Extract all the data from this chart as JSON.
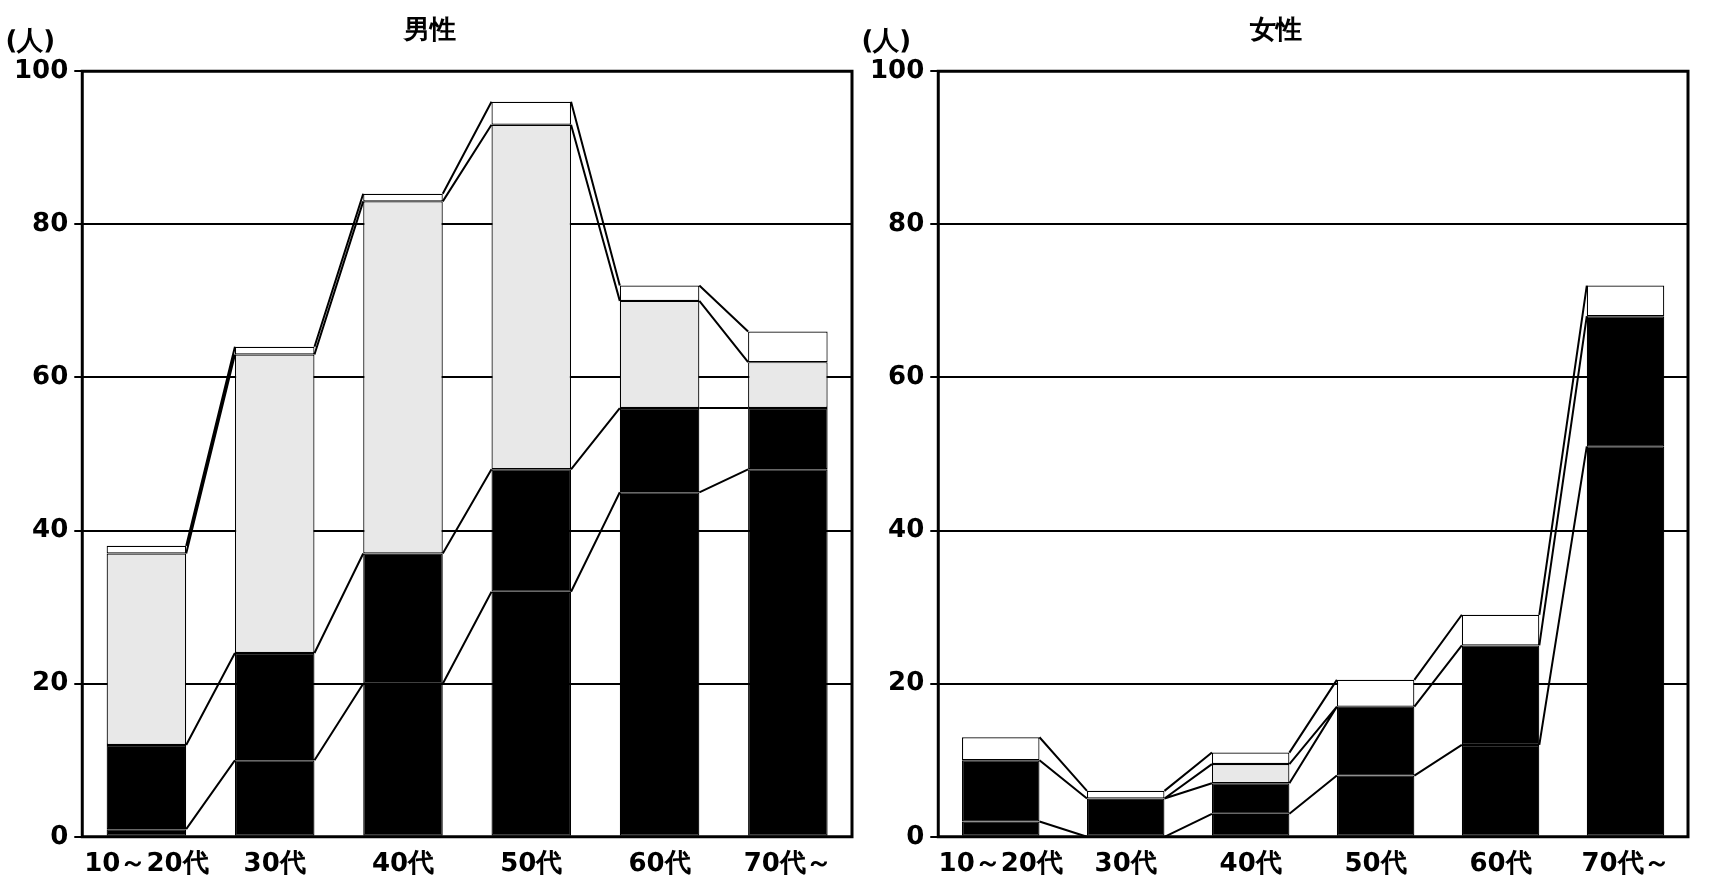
{
  "chart_data": [
    {
      "type": "bar",
      "title": "男性",
      "ylabel": "(人)",
      "categories": [
        "10～20代",
        "30代",
        "40代",
        "50代",
        "60代",
        "70代～"
      ],
      "stacked": true,
      "ylim": [
        0,
        100
      ],
      "yticks": [
        0,
        20,
        40,
        60,
        80,
        100
      ],
      "grid": "y",
      "series": [
        {
          "color": "#000000",
          "values": [
            1,
            10,
            20,
            32,
            45,
            48
          ]
        },
        {
          "color": "#000000",
          "values": [
            11,
            14,
            17,
            16,
            11,
            8
          ]
        },
        {
          "color": "#e8e8e8",
          "values": [
            25,
            39,
            46,
            45,
            14,
            6
          ]
        },
        {
          "color": "#ffffff",
          "values": [
            1,
            1,
            1,
            3,
            2,
            4
          ]
        }
      ]
    },
    {
      "type": "bar",
      "title": "女性",
      "ylabel": "(人)",
      "categories": [
        "10～20代",
        "30代",
        "40代",
        "50代",
        "60代",
        "70代～"
      ],
      "stacked": true,
      "ylim": [
        0,
        100
      ],
      "yticks": [
        0,
        20,
        40,
        60,
        80,
        100
      ],
      "grid": "y",
      "series": [
        {
          "color": "#000000",
          "values": [
            2,
            0,
            3,
            8,
            12,
            51
          ]
        },
        {
          "color": "#000000",
          "values": [
            8,
            5,
            4,
            9,
            13,
            17
          ]
        },
        {
          "color": "#e8e8e8",
          "values": [
            0,
            0,
            2.5,
            0,
            0,
            0
          ]
        },
        {
          "color": "#ffffff",
          "values": [
            3,
            1,
            1.5,
            3.5,
            4,
            4
          ]
        }
      ]
    }
  ]
}
